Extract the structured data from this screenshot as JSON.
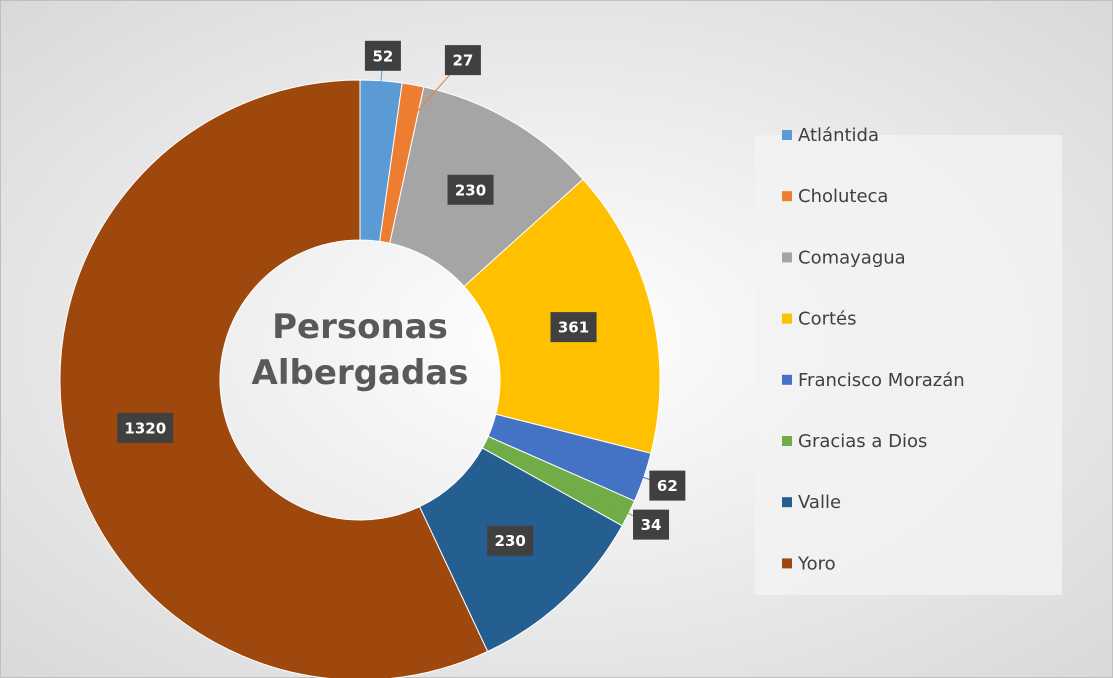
{
  "chart_data": {
    "type": "donut",
    "title": "Personas Albergadas",
    "categories": [
      "Atlántida",
      "Choluteca",
      "Comayagua",
      "Cortés",
      "Francisco Morazán",
      "Gracias a Dios",
      "Valle",
      "Yoro"
    ],
    "values": [
      52,
      27,
      230,
      361,
      62,
      34,
      230,
      1320
    ],
    "colors": [
      "#5b9bd5",
      "#ed7d31",
      "#a5a5a5",
      "#ffc000",
      "#4472c4",
      "#70ad47",
      "#255e91",
      "#9e480e"
    ],
    "legend": "right"
  }
}
